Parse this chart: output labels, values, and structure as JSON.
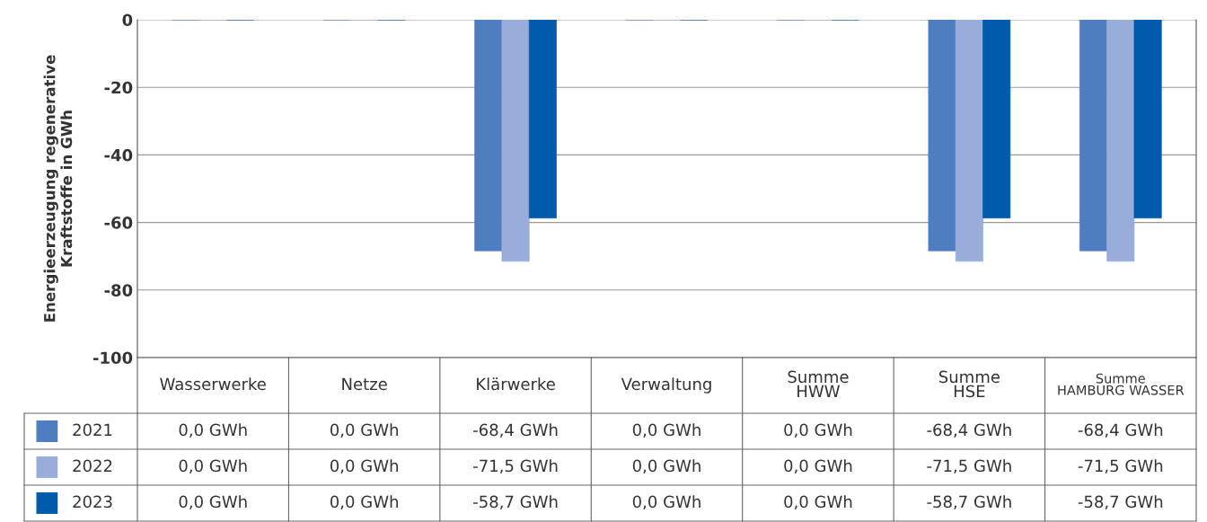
{
  "chart_data": {
    "type": "bar",
    "ylabel": "Energieerzeugung regenerative\nKraftstoffe in GWh",
    "categories": [
      "Wasserwerke",
      "Netze",
      "Klärwerke",
      "Verwaltung",
      "Summe\nHWW",
      "Summe\nHSE",
      "Summe\nHAMBURG WASSER"
    ],
    "series": [
      {
        "name": "2021",
        "color": "#4f7ec0",
        "values": [
          0,
          0,
          -68.4,
          0,
          0,
          -68.4,
          -68.4
        ],
        "value_labels": [
          "0,0 GWh",
          "0,0 GWh",
          "-68,4 GWh",
          "0,0 GWh",
          "0,0 GWh",
          "-68,4 GWh",
          "-68,4 GWh"
        ]
      },
      {
        "name": "2022",
        "color": "#98add9",
        "values": [
          0,
          0,
          -71.5,
          0,
          0,
          -71.5,
          -71.5
        ],
        "value_labels": [
          "0,0 GWh",
          "0,0 GWh",
          "-71,5 GWh",
          "0,0 GWh",
          "0,0 GWh",
          "-71,5 GWh",
          "-71,5 GWh"
        ]
      },
      {
        "name": "2023",
        "color": "#005bac",
        "values": [
          0,
          0,
          -58.7,
          0,
          0,
          -58.7,
          -58.7
        ],
        "value_labels": [
          "0,0 GWh",
          "0,0 GWh",
          "-58,7 GWh",
          "0,0 GWh",
          "0,0 GWh",
          "-58,7 GWh",
          "-58,7 GWh"
        ]
      }
    ],
    "ylim": [
      -100,
      0
    ],
    "yticks": [
      -100,
      -80,
      -60,
      -40,
      -20,
      0
    ],
    "grid": "y",
    "legend": "bottom"
  }
}
